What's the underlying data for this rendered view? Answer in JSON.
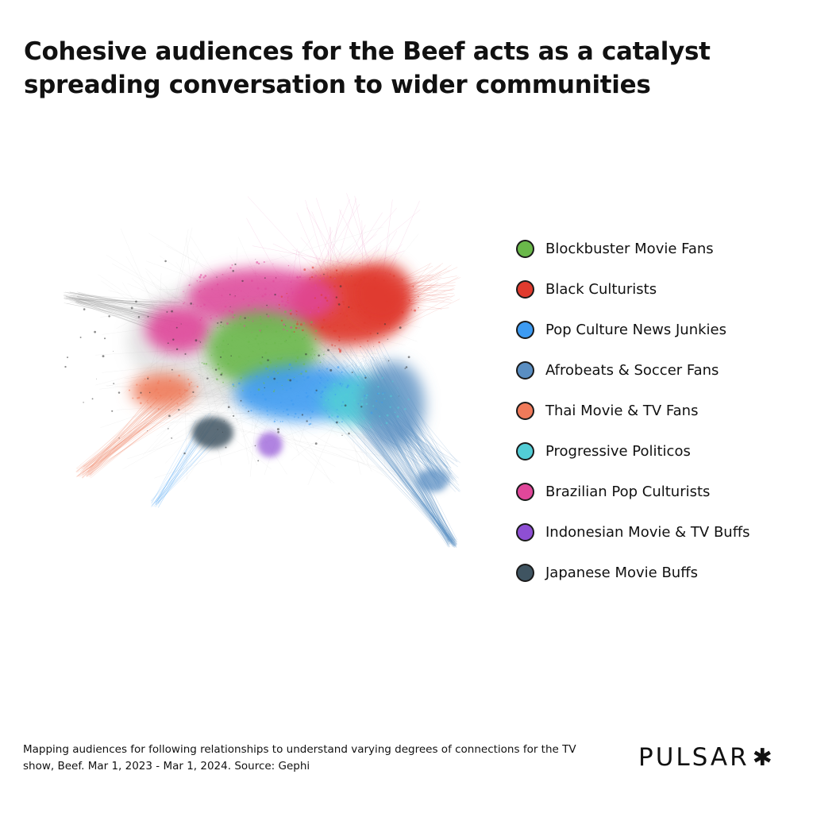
{
  "title": "Cohesive audiences for the Beef acts as a catalyst spreading conversation to wider communities",
  "legend": [
    {
      "label": "Blockbuster Movie Fans",
      "color": "#6ab84a"
    },
    {
      "label": "Black Culturists",
      "color": "#e03b2e"
    },
    {
      "label": "Pop Culture News Junkies",
      "color": "#3d9bf2"
    },
    {
      "label": "Afrobeats & Soccer Fans",
      "color": "#5a8ec2"
    },
    {
      "label": "Thai Movie & TV Fans",
      "color": "#f07a5a"
    },
    {
      "label": "Progressive Politicos",
      "color": "#52cdd6"
    },
    {
      "label": "Brazilian Pop Culturists",
      "color": "#e0479a"
    },
    {
      "label": "Indonesian Movie & TV Buffs",
      "color": "#8e4fd4"
    },
    {
      "label": "Japanese Movie Buffs",
      "color": "#3f5461"
    }
  ],
  "footnote": "Mapping audiences for following relationships to understand varying degrees of connections for the TV show, Beef. Mar 1, 2023 - Mar 1, 2024. Source: Gephi",
  "logo": {
    "text": "PULSAR",
    "mark": "✱"
  }
}
